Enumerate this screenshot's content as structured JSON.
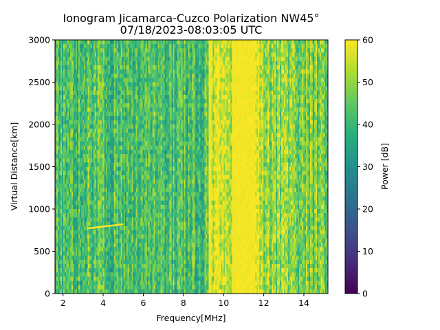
{
  "chart_data": {
    "type": "heatmap",
    "title": "Ionogram Jicamarca-Cuzco Polarization NW45°",
    "subtitle": "07/18/2023-08:03:05 UTC",
    "xlabel": "Frequency[MHz]",
    "ylabel": "Virtual Distance[km]",
    "xlim": [
      1.6,
      15.2
    ],
    "ylim": [
      0,
      3000
    ],
    "x_ticks": [
      2,
      4,
      6,
      8,
      10,
      12,
      14
    ],
    "y_ticks": [
      0,
      500,
      1000,
      1500,
      2000,
      2500,
      3000
    ],
    "colorbar": {
      "label": "Power [dB]",
      "range": [
        0,
        60
      ],
      "ticks": [
        0,
        10,
        20,
        30,
        40,
        50,
        60
      ],
      "colormap": "viridis"
    },
    "features": [
      {
        "name": "typical background",
        "freq_range_MHz": [
          1.6,
          9.0
        ],
        "power_dB": 42
      },
      {
        "name": "saturated line",
        "freq_MHz": 9.3,
        "power_dB": 60
      },
      {
        "name": "noisy band",
        "freq_range_MHz": [
          9.4,
          10.4
        ],
        "power_dB": 55
      },
      {
        "name": "saturated band",
        "freq_range_MHz": [
          10.4,
          11.6
        ],
        "power_dB": 60
      },
      {
        "name": "high band",
        "freq_range_MHz": [
          11.6,
          12.0
        ],
        "power_dB": 57
      },
      {
        "name": "upper band",
        "freq_range_MHz": [
          12.0,
          15.2
        ],
        "power_dB": 48
      },
      {
        "name": "echo trace",
        "freq_range_MHz": [
          3.2,
          5.0
        ],
        "distance_range_km": [
          770,
          820
        ],
        "power_dB": 60
      }
    ],
    "grid": false
  }
}
